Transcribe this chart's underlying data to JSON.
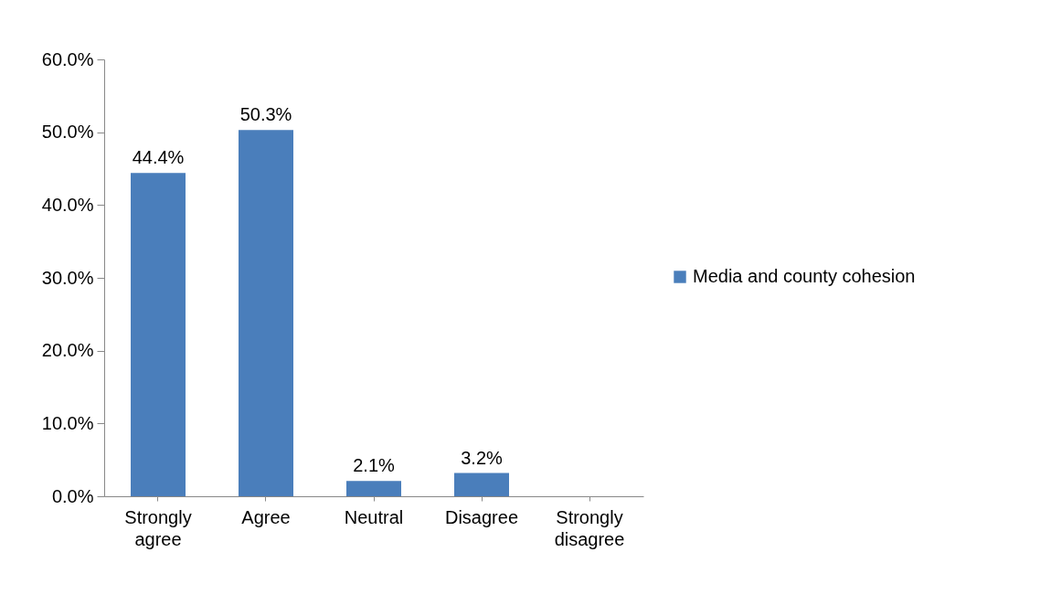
{
  "chart_data": {
    "type": "bar",
    "categories": [
      "Strongly agree",
      "Agree",
      "Neutral",
      "Disagree",
      "Strongly disagree"
    ],
    "series": [
      {
        "name": "Media and county cohesion",
        "color": "#4a7ebb",
        "values": [
          44.4,
          50.3,
          2.1,
          3.2,
          null
        ],
        "value_labels": [
          "44.4%",
          "50.3%",
          "2.1%",
          "3.2%",
          null
        ]
      }
    ],
    "ylim": [
      0,
      60
    ],
    "yticks": [
      {
        "value": 0,
        "label": "0.0%"
      },
      {
        "value": 10,
        "label": "10.0%"
      },
      {
        "value": 20,
        "label": "20.0%"
      },
      {
        "value": 30,
        "label": "30.0%"
      },
      {
        "value": 40,
        "label": "40.0%"
      },
      {
        "value": 50,
        "label": "50.0%"
      },
      {
        "value": 60,
        "label": "60.0%"
      }
    ],
    "grid": false,
    "legend": "right"
  }
}
